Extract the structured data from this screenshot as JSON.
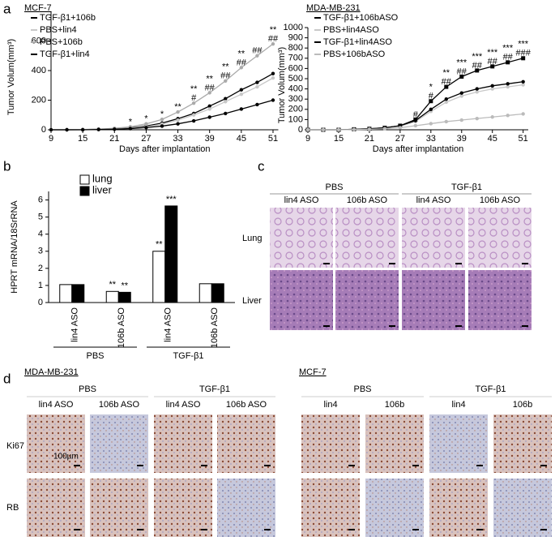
{
  "panel_labels": [
    "a",
    "b",
    "c",
    "d"
  ],
  "chart_data": [
    {
      "type": "line",
      "title": "MCF-7",
      "x_label": "Days after implantation",
      "y_label": "Tumor Volum(mm³)",
      "x": [
        9,
        12,
        15,
        18,
        21,
        24,
        27,
        30,
        33,
        36,
        39,
        42,
        45,
        48,
        51
      ],
      "xlim": [
        9,
        52
      ],
      "xticks": [
        9,
        15,
        21,
        27,
        33,
        39,
        45,
        51
      ],
      "ylim": [
        0,
        800
      ],
      "yticks": [
        0,
        200,
        400,
        600
      ],
      "legend": "upper left",
      "series": [
        {
          "name": "TGF-β1+106b",
          "color": "#000000",
          "values": [
            0,
            0,
            1,
            3,
            6,
            12,
            25,
            45,
            75,
            110,
            160,
            210,
            270,
            320,
            380
          ]
        },
        {
          "name": "PBS+lin4",
          "color": "#c8c8c8",
          "values": [
            0,
            0,
            1,
            3,
            6,
            10,
            20,
            38,
            65,
            100,
            140,
            190,
            240,
            290,
            350
          ]
        },
        {
          "name": "PBS+106b",
          "color": "#aaaaaa",
          "values": [
            0,
            0,
            2,
            5,
            10,
            20,
            40,
            70,
            120,
            180,
            250,
            330,
            420,
            500,
            580
          ]
        },
        {
          "name": "TGF-β1+lin4",
          "color": "#000000",
          "values": [
            0,
            0,
            0,
            2,
            4,
            8,
            15,
            25,
            40,
            60,
            85,
            110,
            140,
            170,
            200
          ]
        }
      ],
      "annotations": [
        {
          "x": 36,
          "text": "#"
        },
        {
          "x": 39,
          "text": "##"
        },
        {
          "x": 42,
          "text": "##"
        },
        {
          "x": 45,
          "text": "##"
        },
        {
          "x": 48,
          "text": "##"
        },
        {
          "x": 51,
          "text": "##"
        },
        {
          "x": 24,
          "text": "*"
        },
        {
          "x": 27,
          "text": "*"
        },
        {
          "x": 30,
          "text": "*"
        },
        {
          "x": 33,
          "text": "**"
        },
        {
          "x": 36,
          "text": "**"
        },
        {
          "x": 39,
          "text": "**"
        },
        {
          "x": 42,
          "text": "**"
        },
        {
          "x": 45,
          "text": "**"
        },
        {
          "x": 51,
          "text": "**"
        }
      ]
    },
    {
      "type": "line",
      "title": "MDA-MB-231",
      "x_label": "Days after implantation",
      "y_label": "Tumor Volum(mm³)",
      "x": [
        9,
        12,
        15,
        18,
        21,
        24,
        27,
        30,
        33,
        36,
        39,
        42,
        45,
        48,
        51
      ],
      "xlim": [
        9,
        52
      ],
      "xticks": [
        9,
        15,
        21,
        27,
        33,
        39,
        45,
        51
      ],
      "ylim": [
        0,
        1000
      ],
      "yticks": [
        0,
        100,
        200,
        300,
        400,
        500,
        600,
        700,
        800,
        900,
        1000
      ],
      "legend": "upper left",
      "series": [
        {
          "name": "TGF-β1+106bASO",
          "color": "#000000",
          "values": [
            0,
            0,
            0,
            5,
            10,
            20,
            40,
            100,
            280,
            420,
            520,
            580,
            620,
            660,
            700
          ]
        },
        {
          "name": "PBS+lin4ASO",
          "color": "#c8c8c8",
          "values": [
            0,
            0,
            0,
            5,
            10,
            20,
            35,
            80,
            180,
            270,
            330,
            370,
            400,
            420,
            440
          ]
        },
        {
          "name": "TGF-β1+lin4ASO",
          "color": "#000000",
          "values": [
            0,
            0,
            0,
            5,
            10,
            20,
            40,
            90,
            200,
            300,
            360,
            400,
            430,
            450,
            470
          ]
        },
        {
          "name": "PBS+106bASO",
          "color": "#bbbbbb",
          "values": [
            0,
            0,
            0,
            2,
            5,
            10,
            20,
            40,
            60,
            80,
            95,
            110,
            125,
            140,
            155
          ]
        }
      ],
      "annotations": [
        {
          "x": 30,
          "text": "#"
        },
        {
          "x": 33,
          "text": "#"
        },
        {
          "x": 36,
          "text": "##"
        },
        {
          "x": 39,
          "text": "##"
        },
        {
          "x": 42,
          "text": "##"
        },
        {
          "x": 45,
          "text": "##"
        },
        {
          "x": 48,
          "text": "##"
        },
        {
          "x": 51,
          "text": "###"
        },
        {
          "x": 33,
          "text": "*"
        },
        {
          "x": 36,
          "text": "**"
        },
        {
          "x": 39,
          "text": "***"
        },
        {
          "x": 42,
          "text": "***"
        },
        {
          "x": 45,
          "text": "***"
        },
        {
          "x": 48,
          "text": "***"
        },
        {
          "x": 51,
          "text": "***"
        }
      ]
    },
    {
      "type": "bar",
      "y_label": "HPRT mRNA/18SrRNA",
      "categories": [
        "lin4 ASO",
        "106b ASO",
        "lin4 ASO",
        "106b ASO"
      ],
      "groups": [
        "PBS",
        "TGF-β1"
      ],
      "ylim": [
        0,
        6.5
      ],
      "yticks": [
        0,
        1,
        2,
        3,
        4,
        5,
        6
      ],
      "legend": "upper left",
      "series": [
        {
          "name": "lung",
          "color": "#ffffff",
          "values": [
            1.05,
            0.65,
            3.0,
            1.1
          ],
          "annotations": [
            null,
            "**",
            "**",
            null
          ]
        },
        {
          "name": "liver",
          "color": "#000000",
          "values": [
            1.05,
            0.6,
            5.65,
            1.1
          ],
          "annotations": [
            null,
            "**",
            "***",
            null
          ]
        }
      ]
    }
  ],
  "panel_c": {
    "groups": [
      "PBS",
      "TGF-β1"
    ],
    "columns": [
      "lin4 ASO",
      "106b ASO",
      "lin4 ASO",
      "106b ASO"
    ],
    "rows": [
      "Lung",
      "Liver"
    ]
  },
  "panel_d": {
    "blocks": [
      {
        "title": "MDA-MB-231",
        "groups": [
          "PBS",
          "TGF-β1"
        ],
        "columns": [
          "lin4 ASO",
          "106b ASO",
          "lin4 ASO",
          "106b ASO"
        ]
      },
      {
        "title": "MCF-7",
        "groups": [
          "PBS",
          "TGF-β1"
        ],
        "columns": [
          "lin4",
          "106b",
          "lin4",
          "106b"
        ]
      }
    ],
    "rows": [
      "Ki67",
      "RB"
    ],
    "scale_bar": "100µm"
  }
}
